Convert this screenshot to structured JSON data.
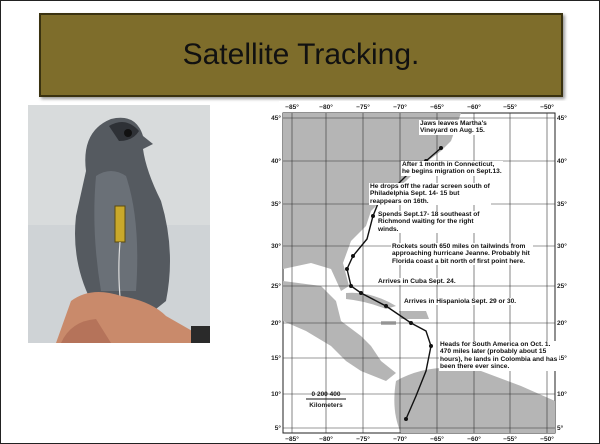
{
  "title": "Satellite Tracking.",
  "map": {
    "lon_labels": [
      "−85°",
      "−80°",
      "−75°",
      "−70°",
      "−65°",
      "−60°",
      "−55°",
      "−50°"
    ],
    "lat_labels": [
      "45°",
      "40°",
      "35°",
      "30°",
      "25°",
      "20°",
      "15°",
      "10°",
      "5°"
    ],
    "annotations": [
      "Jaws leaves Martha's Vineyard on Aug. 15.",
      "After 1 month in Connecticut, he begins migration on Sept.13.",
      "He drops off the radar screen south of Philadelphia Sept. 14- 15 but reappears on 16th.",
      "Spends Sept.17- 18 southeast of Richmond waiting for the right winds.",
      "Rockets south 650 miles on tailwinds from approaching hurricane Jeanne. Probably hit Florida coast a bit north of first point here.",
      "Arrives in Cuba Sept. 24.",
      "Arrives in Hispaniola Sept. 29 or 30.",
      "Heads for South America on Oct. 1. 470 miles later (probably about 15 hours), he lands in Colombia and has been there ever since."
    ],
    "scale": {
      "ticks": "0  200 400",
      "unit": "Kilometers"
    }
  }
}
